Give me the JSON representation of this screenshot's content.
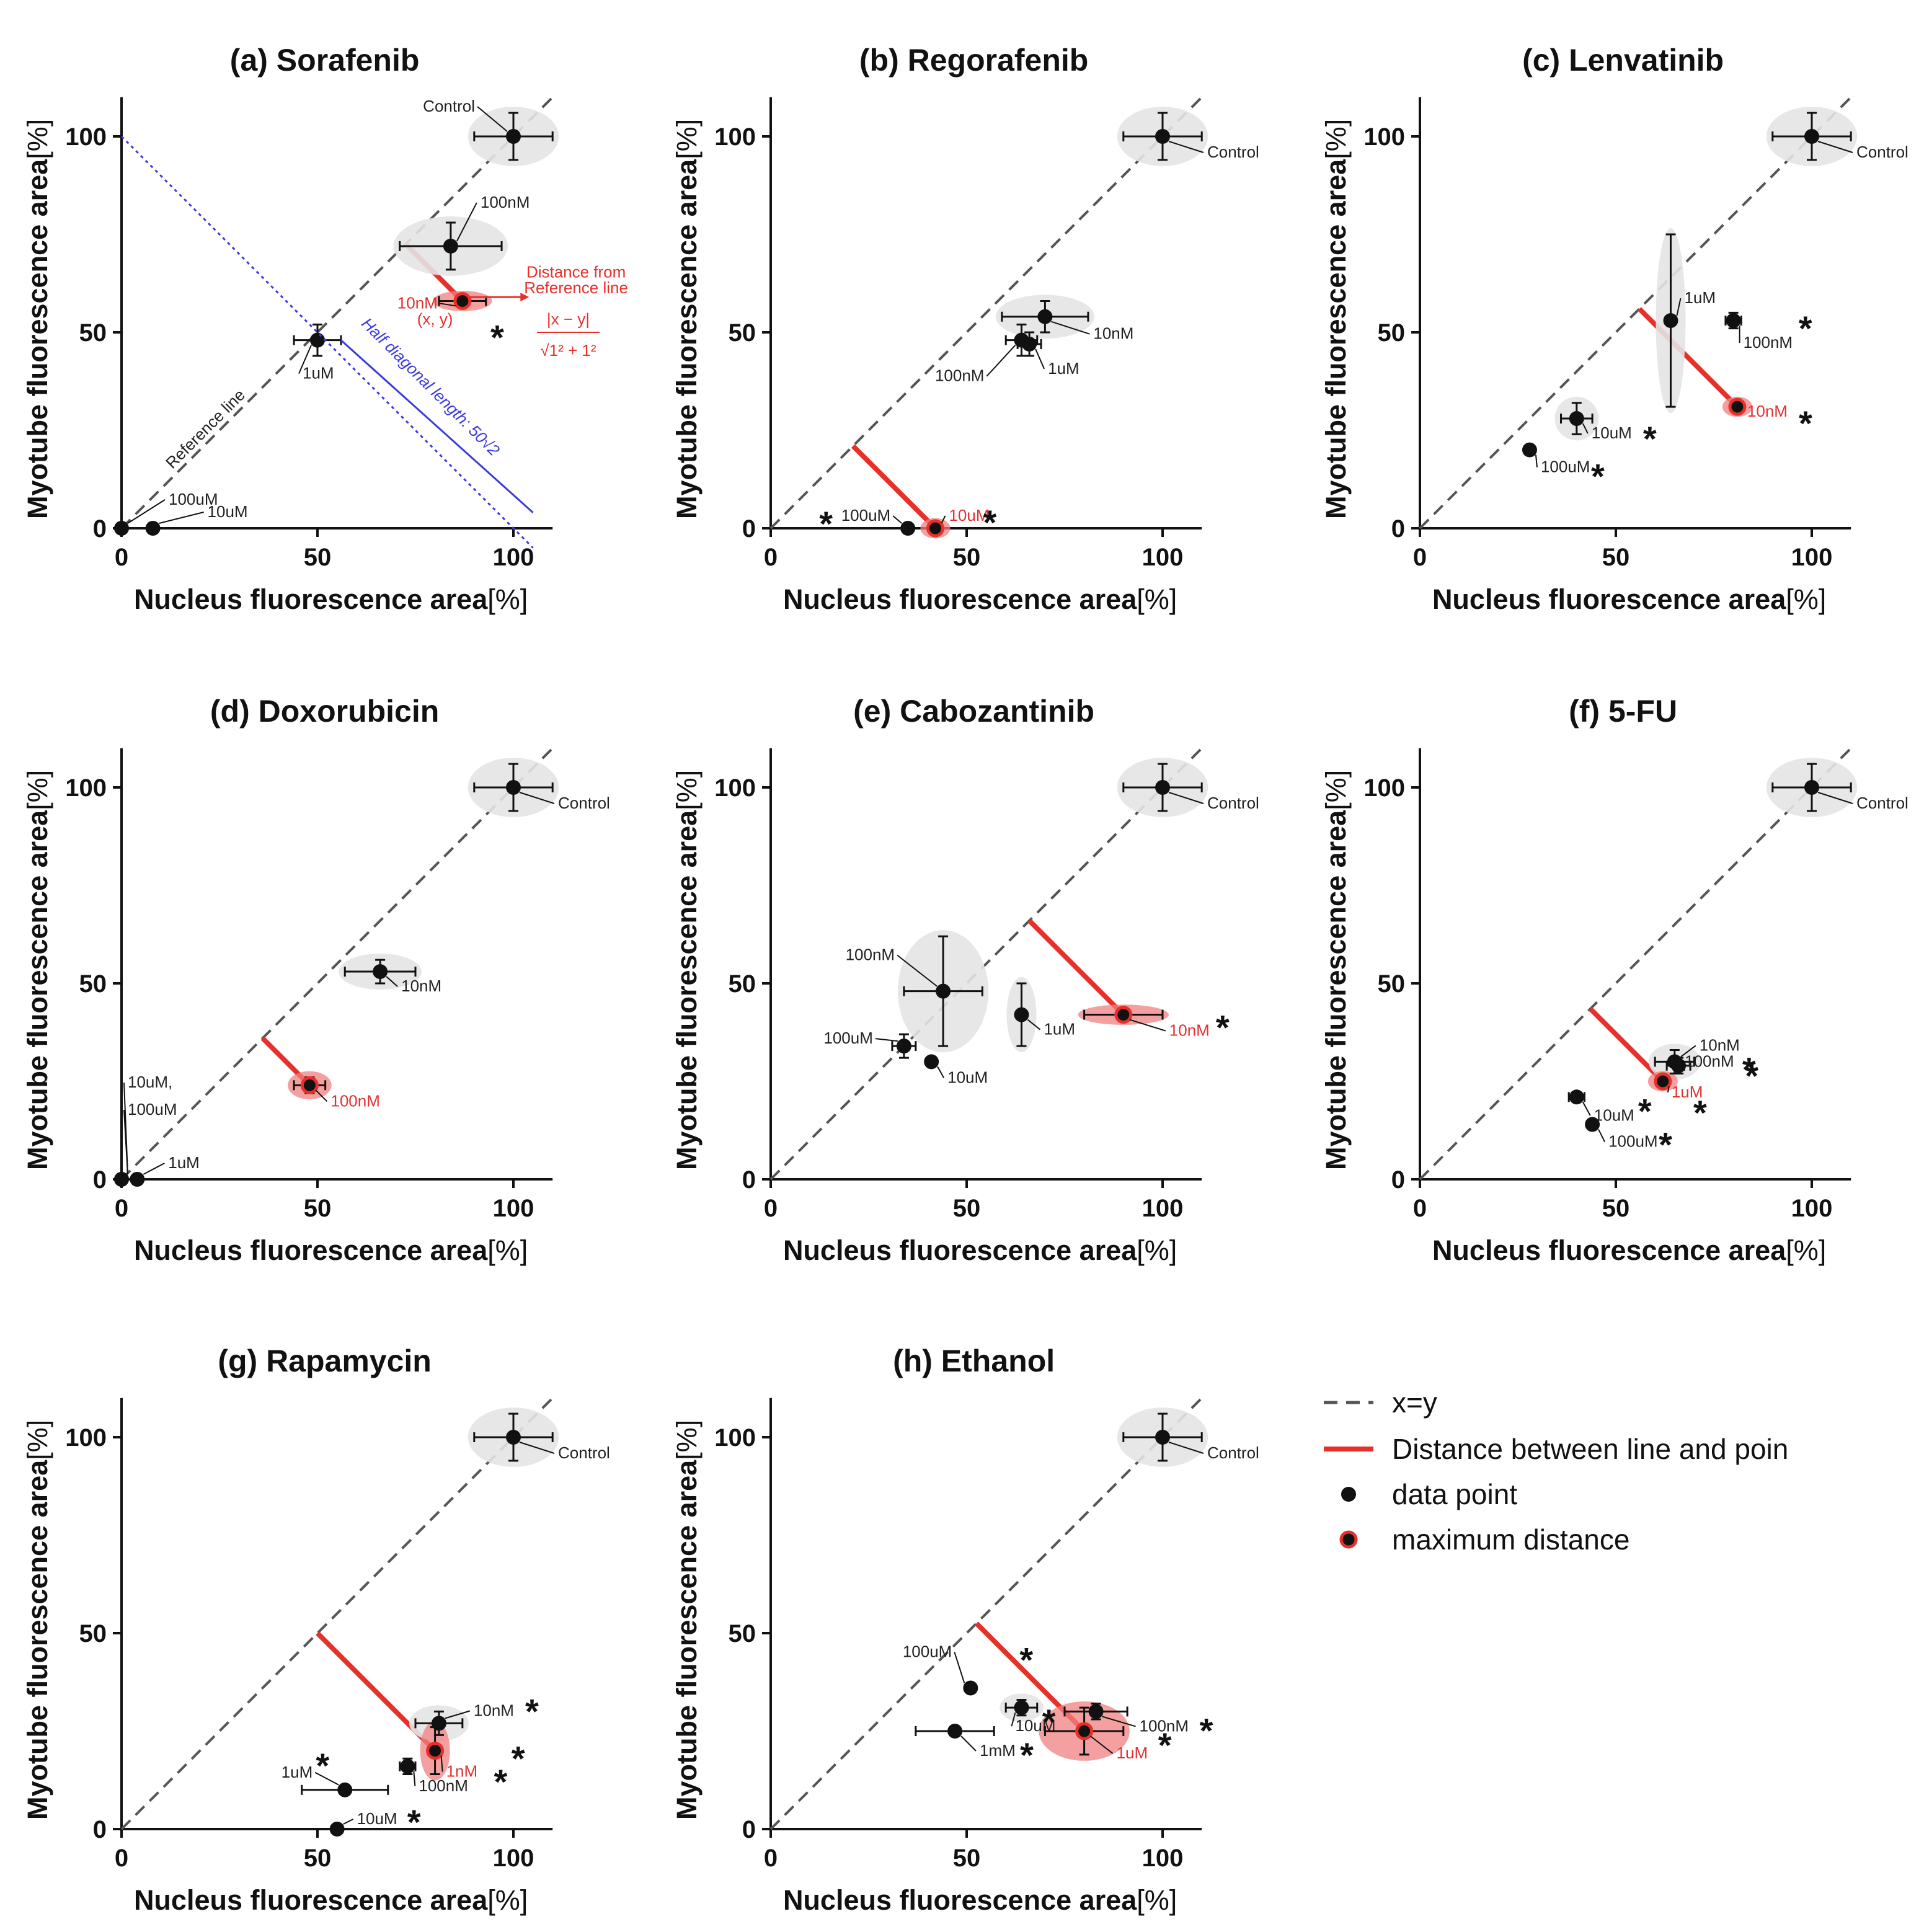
{
  "figure": {
    "xlabel": "Nucleus fluorescence area",
    "xunit": "[%]",
    "ylabel": "Myotube fluorescence area",
    "yunit": "[%]"
  },
  "colors": {
    "point": "#111111",
    "distance_line": "#e8302a",
    "reference": "#555555",
    "guide": "#3b3bdd",
    "ellipse": "#e4e4e4",
    "max_ellipse": "#f08080"
  },
  "chart_data": [
    {
      "type": "scatter",
      "title": "(a) Sorafenib",
      "xlim": [
        0,
        110
      ],
      "ylim": [
        0,
        110
      ],
      "xticks": [
        "0",
        "50",
        "100"
      ],
      "yticks": [
        "0",
        "50",
        "100"
      ],
      "points": [
        {
          "label": "Control",
          "x": 100,
          "y": 100,
          "xerr": 10,
          "yerr": 6,
          "ellipse": true
        },
        {
          "label": "100nM",
          "x": 84,
          "y": 72,
          "xerr": 13,
          "yerr": 6,
          "ellipse": true
        },
        {
          "label": "10nM",
          "x": 87,
          "y": 58,
          "xerr": 6,
          "yerr": 1,
          "max": true,
          "star": true
        },
        {
          "label": "1uM",
          "x": 50,
          "y": 48,
          "xerr": 6,
          "yerr": 4
        },
        {
          "label": "100uM",
          "x": 0,
          "y": 0
        },
        {
          "label": "10uM",
          "x": 8,
          "y": 0
        }
      ],
      "annotations": {
        "reference_line": "Reference line",
        "xy": "(x, y)",
        "distance_title_1": "Distance from",
        "distance_title_2": "Reference line",
        "formula_num": "|x − y|",
        "formula_den": "√1² + 1²",
        "half_diag": "Half diagonal length: 50√2"
      }
    },
    {
      "type": "scatter",
      "title": "(b) Regorafenib",
      "xlim": [
        0,
        110
      ],
      "ylim": [
        0,
        110
      ],
      "xticks": [
        "0",
        "50",
        "100"
      ],
      "yticks": [
        "0",
        "50",
        "100"
      ],
      "points": [
        {
          "label": "Control",
          "x": 100,
          "y": 100,
          "xerr": 10,
          "yerr": 6,
          "ellipse": true
        },
        {
          "label": "10nM",
          "x": 70,
          "y": 54,
          "xerr": 11,
          "yerr": 4,
          "ellipse": true
        },
        {
          "label": "100nM",
          "x": 64,
          "y": 48,
          "xerr": 4,
          "yerr": 4
        },
        {
          "label": "1uM",
          "x": 66,
          "y": 47,
          "xerr": 3,
          "yerr": 3
        },
        {
          "label": "100uM",
          "x": 35,
          "y": 0,
          "star": true
        },
        {
          "label": "10uM",
          "x": 42,
          "y": 0,
          "max": true,
          "star": true
        }
      ]
    },
    {
      "type": "scatter",
      "title": "(c) Lenvatinib",
      "xlim": [
        0,
        110
      ],
      "ylim": [
        0,
        110
      ],
      "xticks": [
        "0",
        "50",
        "100"
      ],
      "yticks": [
        "0",
        "50",
        "100"
      ],
      "points": [
        {
          "label": "Control",
          "x": 100,
          "y": 100,
          "xerr": 10,
          "yerr": 6,
          "ellipse": true
        },
        {
          "label": "1uM",
          "x": 64,
          "y": 53,
          "xerr": 1,
          "yerr": 22,
          "ellipse": true
        },
        {
          "label": "100nM",
          "x": 80,
          "y": 53,
          "xerr": 2,
          "yerr": 2,
          "star": true
        },
        {
          "label": "10nM",
          "x": 81,
          "y": 31,
          "max": true,
          "star": true
        },
        {
          "label": "10uM",
          "x": 40,
          "y": 28,
          "xerr": 4,
          "yerr": 4,
          "ellipse": true,
          "star": true
        },
        {
          "label": "100uM",
          "x": 28,
          "y": 20,
          "star": true
        }
      ]
    },
    {
      "type": "scatter",
      "title": "(d) Doxorubicin",
      "xlim": [
        0,
        110
      ],
      "ylim": [
        0,
        110
      ],
      "xticks": [
        "0",
        "50",
        "100"
      ],
      "yticks": [
        "0",
        "50",
        "100"
      ],
      "points": [
        {
          "label": "Control",
          "x": 100,
          "y": 100,
          "xerr": 10,
          "yerr": 6,
          "ellipse": true
        },
        {
          "label": "10nM",
          "x": 66,
          "y": 53,
          "xerr": 9,
          "yerr": 3,
          "ellipse": true
        },
        {
          "label": "100nM",
          "x": 48,
          "y": 24,
          "xerr": 4,
          "yerr": 2,
          "max": true
        },
        {
          "label": "10uM,",
          "x": 0,
          "y": 0
        },
        {
          "label": "100uM",
          "x": 0,
          "y": 0
        },
        {
          "label": "1uM",
          "x": 4,
          "y": 0
        }
      ]
    },
    {
      "type": "scatter",
      "title": "(e) Cabozantinib",
      "xlim": [
        0,
        110
      ],
      "ylim": [
        0,
        110
      ],
      "xticks": [
        "0",
        "50",
        "100"
      ],
      "yticks": [
        "0",
        "50",
        "100"
      ],
      "points": [
        {
          "label": "Control",
          "x": 100,
          "y": 100,
          "xerr": 10,
          "yerr": 6,
          "ellipse": true
        },
        {
          "label": "100nM",
          "x": 44,
          "y": 48,
          "xerr": 10,
          "yerr": 14,
          "ellipse": true
        },
        {
          "label": "1uM",
          "x": 64,
          "y": 42,
          "xerr": 1,
          "yerr": 8,
          "ellipse": true
        },
        {
          "label": "10nM",
          "x": 90,
          "y": 42,
          "xerr": 10,
          "yerr": 1,
          "max": true,
          "star": true
        },
        {
          "label": "100uM",
          "x": 34,
          "y": 34,
          "xerr": 3,
          "yerr": 3
        },
        {
          "label": "10uM",
          "x": 41,
          "y": 30
        }
      ]
    },
    {
      "type": "scatter",
      "title": "(f) 5-FU",
      "xlim": [
        0,
        110
      ],
      "ylim": [
        0,
        110
      ],
      "xticks": [
        "0",
        "50",
        "100"
      ],
      "yticks": [
        "0",
        "50",
        "100"
      ],
      "points": [
        {
          "label": "Control",
          "x": 100,
          "y": 100,
          "xerr": 10,
          "yerr": 6,
          "ellipse": true
        },
        {
          "label": "10nM",
          "x": 65,
          "y": 30,
          "xerr": 5,
          "yerr": 3,
          "ellipse": true,
          "star": true
        },
        {
          "label": "100nM",
          "x": 66,
          "y": 29,
          "xerr": 3,
          "yerr": 2,
          "star": true
        },
        {
          "label": "1uM",
          "x": 62,
          "y": 25,
          "max": true,
          "star": true
        },
        {
          "label": "10uM",
          "x": 40,
          "y": 21,
          "xerr": 2,
          "yerr": 1,
          "star": true
        },
        {
          "label": "100uM",
          "x": 44,
          "y": 14,
          "star": true
        }
      ]
    },
    {
      "type": "scatter",
      "title": "(g) Rapamycin",
      "xlim": [
        0,
        110
      ],
      "ylim": [
        0,
        110
      ],
      "xticks": [
        "0",
        "50",
        "100"
      ],
      "yticks": [
        "0",
        "50",
        "100"
      ],
      "points": [
        {
          "label": "Control",
          "x": 100,
          "y": 100,
          "xerr": 10,
          "yerr": 6,
          "ellipse": true
        },
        {
          "label": "10nM",
          "x": 81,
          "y": 27,
          "xerr": 6,
          "yerr": 3,
          "ellipse": true,
          "star": true
        },
        {
          "label": "1nM",
          "x": 80,
          "y": 20,
          "xerr": 1,
          "yerr": 6,
          "max": true,
          "star": true
        },
        {
          "label": "100nM",
          "x": 73,
          "y": 16,
          "xerr": 2,
          "yerr": 2,
          "star": true
        },
        {
          "label": "1uM",
          "x": 57,
          "y": 10,
          "xerr": 11,
          "yerr": 1,
          "star": true
        },
        {
          "label": "10uM",
          "x": 55,
          "y": 0,
          "xerr": 1,
          "yerr": 1,
          "star": true
        }
      ]
    },
    {
      "type": "scatter",
      "title": "(h) Ethanol",
      "xlim": [
        0,
        110
      ],
      "ylim": [
        0,
        110
      ],
      "xticks": [
        "0",
        "50",
        "100"
      ],
      "yticks": [
        "0",
        "50",
        "100"
      ],
      "points": [
        {
          "label": "Control",
          "x": 100,
          "y": 100,
          "xerr": 10,
          "yerr": 6,
          "ellipse": true
        },
        {
          "label": "100uM",
          "x": 51,
          "y": 36,
          "star": true
        },
        {
          "label": "10uM",
          "x": 64,
          "y": 31,
          "xerr": 4,
          "yerr": 2,
          "ellipse": true,
          "star": true
        },
        {
          "label": "100nM",
          "x": 83,
          "y": 30,
          "xerr": 8,
          "yerr": 2,
          "star": true
        },
        {
          "label": "1mM",
          "x": 47,
          "y": 25,
          "xerr": 10,
          "yerr": 1,
          "star": true
        },
        {
          "label": "1uM",
          "x": 80,
          "y": 25,
          "xerr": 10,
          "yerr": 6,
          "max": true,
          "star": true
        }
      ]
    }
  ],
  "legend": [
    {
      "label": "x=y"
    },
    {
      "label": "Distance between line and poin"
    },
    {
      "label": "data point"
    },
    {
      "label": "maximum distance"
    }
  ]
}
